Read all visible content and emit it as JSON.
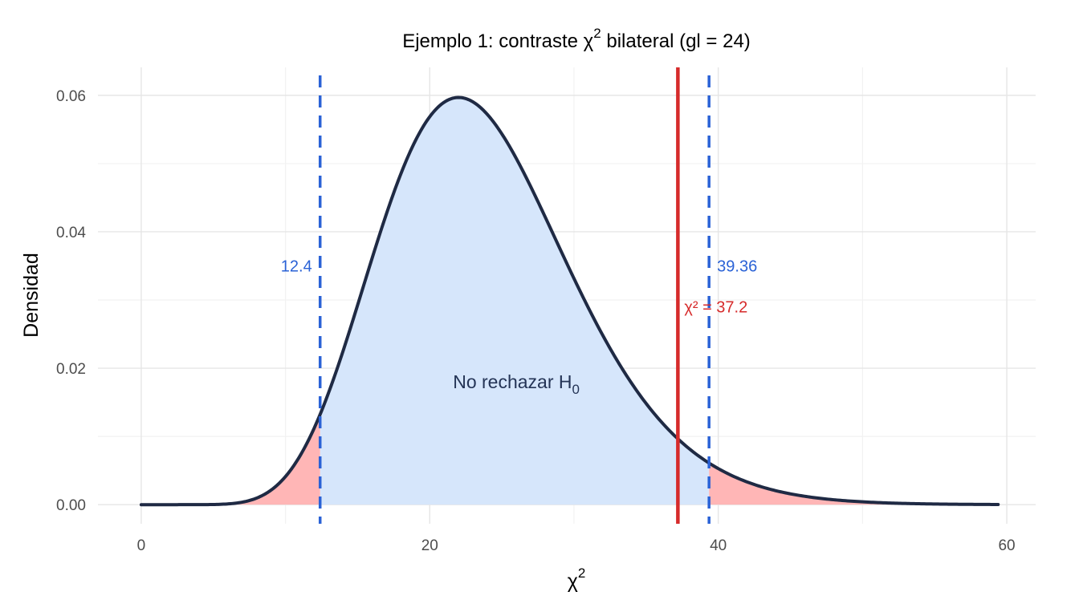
{
  "chart_data": {
    "type": "area",
    "title_main": "Ejemplo 1: contraste χ",
    "title_sup": "2",
    "title_rest": " bilateral (gl = 24)",
    "xlabel_main": "χ",
    "xlabel_sup": "2",
    "ylabel": "Densidad",
    "df": 24,
    "xlim": [
      -3,
      62
    ],
    "ylim": [
      -0.0028,
      0.0641
    ],
    "x_ticks": [
      0,
      20,
      40,
      60
    ],
    "x_tick_labels": [
      "0",
      "20",
      "40",
      "60"
    ],
    "y_ticks": [
      0,
      0.02,
      0.04,
      0.06
    ],
    "y_tick_labels": [
      "0.00",
      "0.02",
      "0.04",
      "0.06"
    ],
    "x_minor_ticks": [
      10,
      30,
      50
    ],
    "y_minor_ticks": [
      0.01,
      0.03,
      0.05
    ],
    "grid": true,
    "curve_x_range": [
      0,
      59.4
    ],
    "critical_lower": 12.4,
    "critical_upper": 39.36,
    "critical_lower_label": "12.4",
    "critical_upper_label": "39.36",
    "statistic": 37.2,
    "statistic_label": "χ² = 37.2",
    "region_label_main": "No rechazar H",
    "region_label_sub": "0",
    "colors": {
      "curve": "#1f2a44",
      "acceptance_fill": "#d6e6fb",
      "rejection_fill": "#ffb6b6",
      "critical_line": "#2a62d6",
      "statistic_line": "#d62a2a",
      "grid_major": "#e6e6e6",
      "grid_minor": "#f2f2f2",
      "text": "#000000",
      "tick_text": "#4d4d4d",
      "region_text": "#243456"
    }
  }
}
